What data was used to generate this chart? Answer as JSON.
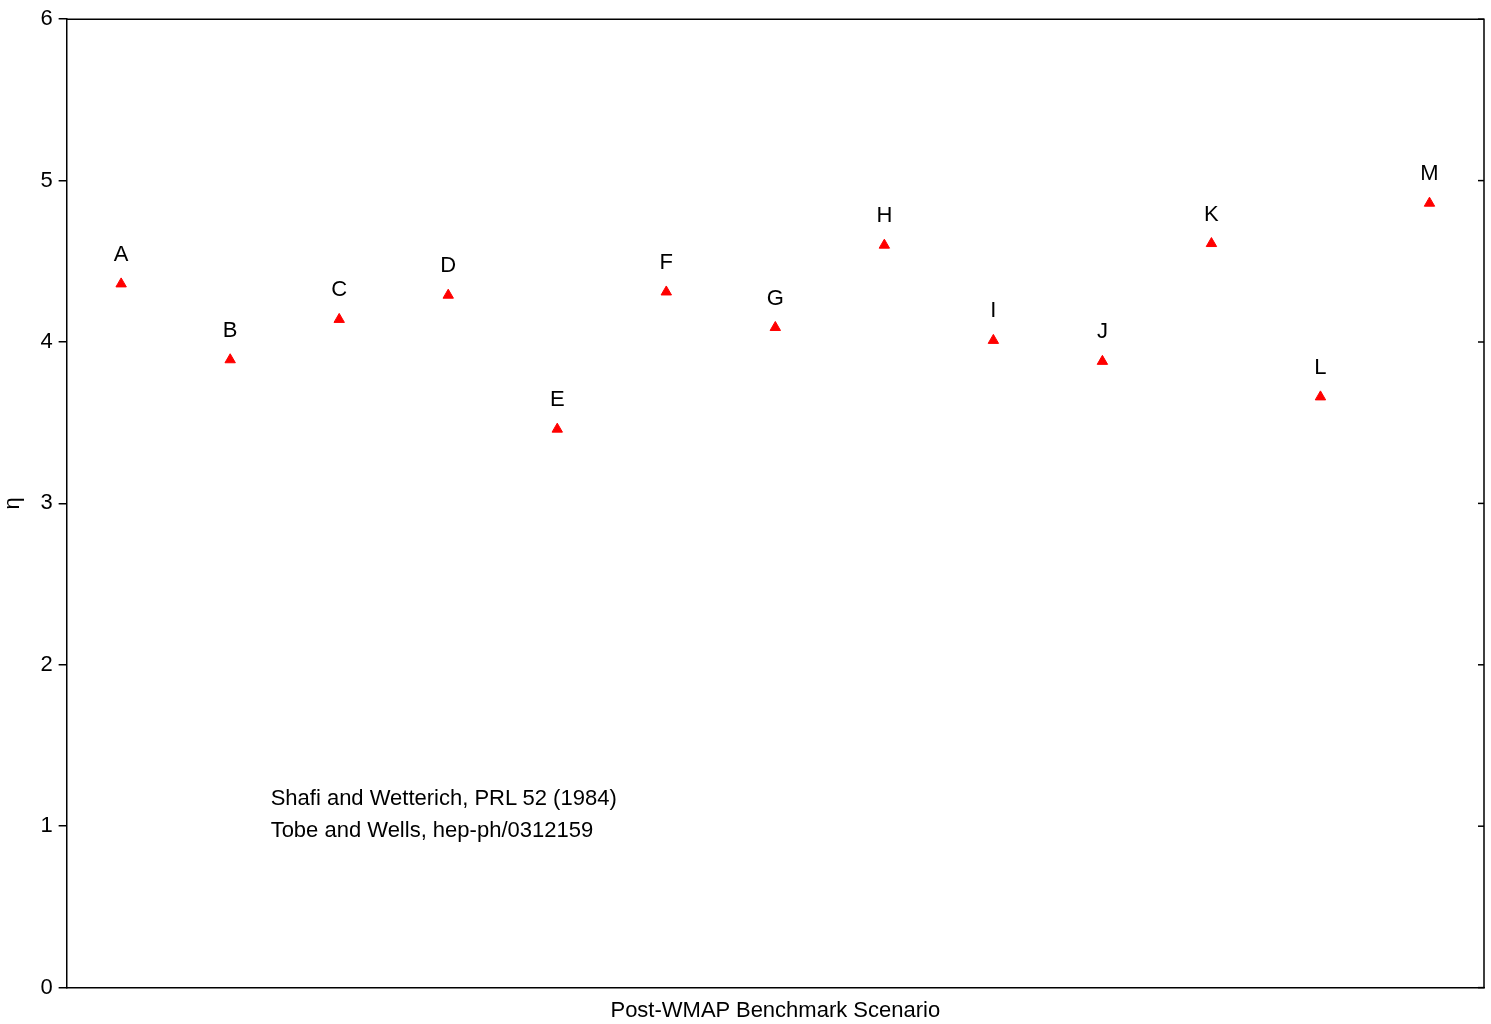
{
  "chart_data": {
    "type": "scatter",
    "xlabel": "Post-WMAP Benchmark Scenario",
    "ylabel": "η",
    "categories": [
      "A",
      "B",
      "C",
      "D",
      "E",
      "F",
      "G",
      "H",
      "I",
      "J",
      "K",
      "L",
      "M"
    ],
    "series": [
      {
        "color": "#ff0000",
        "values": [
          4.36,
          3.89,
          4.14,
          4.29,
          3.46,
          4.31,
          4.09,
          4.6,
          4.01,
          3.88,
          4.61,
          3.66,
          4.86
        ]
      }
    ],
    "ylim": [
      0,
      6
    ],
    "yticks": [
      0,
      1,
      2,
      3,
      4,
      5,
      6
    ],
    "marker": "triangle",
    "tick_labels": "y",
    "legend": false,
    "annotations": [
      "Shafi and Wetterich, PRL 52 (1984)",
      "Tobe and Wells, hep-ph/0312159"
    ]
  }
}
